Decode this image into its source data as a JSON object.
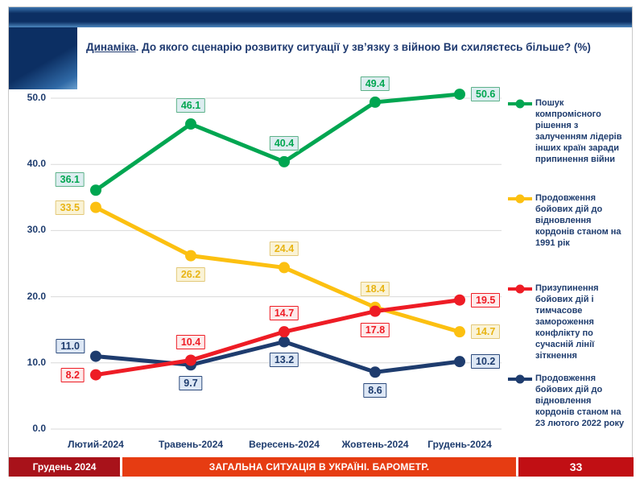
{
  "slide": {
    "title_prefix": "Динаміка",
    "title_rest": ". До якого сценарію розвитку ситуації у зв’язку з війною Ви схиляєтесь більше? (%)",
    "footer": {
      "date": "Грудень 2024",
      "center": "ЗАГАЛЬНА СИТУАЦІЯ В УКРАЇНІ. БАРОМЕТР.",
      "page": "33"
    }
  },
  "colors": {
    "title_navy": "#1f3a70",
    "band_dark": "#0c2f63",
    "band_light": "#4d87bf",
    "grid": "#d9d9d9",
    "footer_date_bg": "#a8121a",
    "footer_center_bg": "#e63c12",
    "footer_page_bg": "#c10f14"
  },
  "chart_data": {
    "type": "line",
    "title": "Динаміка. До якого сценарію розвитку ситуації у зв’язку з війною Ви схиляєтесь більше? (%)",
    "categories": [
      "Лютий-2024",
      "Травень-2024",
      "Вересень-2024",
      "Жовтень-2024",
      "Грудень-2024"
    ],
    "yticks": [
      "0.0",
      "10.0",
      "20.0",
      "30.0",
      "40.0",
      "50.0"
    ],
    "ylim": [
      0,
      55
    ],
    "grid": true,
    "legend_position": "right",
    "series": [
      {
        "name": "Пошук компромісного рішення з залученням лідерів інших країн заради припинення війни",
        "color": "#00a651",
        "values": [
          36.1,
          46.1,
          40.4,
          49.4,
          50.6
        ],
        "label_bg": "#ddedf0",
        "label_border": "#5cb189",
        "label_color": "#00a651",
        "label_anchors": [
          "left-up",
          "above",
          "above",
          "above",
          "right"
        ]
      },
      {
        "name": "Продовження бойових дій до відновлення кордонів станом на 1991 рік",
        "color": "#fcc011",
        "values": [
          33.5,
          26.2,
          24.4,
          18.4,
          14.7
        ],
        "label_bg": "#faf3d6",
        "label_border": "#e3c878",
        "label_color": "#e8b414",
        "label_anchors": [
          "left",
          "below",
          "above",
          "above",
          "right"
        ]
      },
      {
        "name": "Призупинення бойових дій і тимчасове замороження конфлікту по сучасній лінії зіткнення",
        "color": "#ee1c25",
        "values": [
          8.2,
          10.4,
          14.7,
          17.8,
          19.5
        ],
        "label_bg": "#fdeaea",
        "label_border": "#ee1c25",
        "label_color": "#ee1c25",
        "label_anchors": [
          "left",
          "above",
          "above",
          "below",
          "right"
        ]
      },
      {
        "name": "Продовження бойових дій до відновлення кордонів станом на 23 лютого 2022 року",
        "color": "#1e3c6e",
        "values": [
          11.0,
          9.7,
          13.2,
          8.6,
          10.2
        ],
        "label_bg": "#dde7f5",
        "label_border": "#2c4a7c",
        "label_color": "#1e3c6e",
        "label_anchors": [
          "left-up",
          "below",
          "below",
          "below",
          "right"
        ]
      }
    ]
  }
}
